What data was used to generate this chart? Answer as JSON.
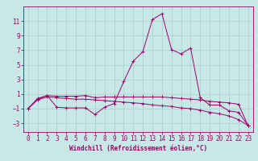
{
  "title": "",
  "xlabel": "Windchill (Refroidissement éolien,°C)",
  "ylabel": "",
  "bg_color": "#c8e8e8",
  "line_color": "#990066",
  "grid_color": "#aacccc",
  "xlim": [
    -0.5,
    23.5
  ],
  "ylim": [
    -4.2,
    13.0
  ],
  "xticks": [
    0,
    1,
    2,
    3,
    4,
    5,
    6,
    7,
    8,
    9,
    10,
    11,
    12,
    13,
    14,
    15,
    16,
    17,
    18,
    19,
    20,
    21,
    22,
    23
  ],
  "yticks": [
    -3,
    -1,
    1,
    3,
    5,
    7,
    9,
    11
  ],
  "line1": [
    [
      0,
      -1
    ],
    [
      1,
      0.4
    ],
    [
      2,
      0.8
    ],
    [
      3,
      -0.8
    ],
    [
      4,
      -0.9
    ],
    [
      5,
      -0.9
    ],
    [
      6,
      -0.9
    ],
    [
      7,
      -1.8
    ],
    [
      8,
      -0.8
    ],
    [
      9,
      -0.3
    ],
    [
      10,
      2.7
    ],
    [
      11,
      5.5
    ],
    [
      12,
      6.8
    ],
    [
      13,
      11.2
    ],
    [
      14,
      12.0
    ],
    [
      15,
      7.1
    ],
    [
      16,
      6.5
    ],
    [
      17,
      7.3
    ],
    [
      18,
      0.5
    ],
    [
      19,
      -0.5
    ],
    [
      20,
      -0.5
    ],
    [
      21,
      -1.3
    ],
    [
      22,
      -1.5
    ],
    [
      23,
      -3.3
    ]
  ],
  "line2": [
    [
      0,
      -1
    ],
    [
      1,
      0.3
    ],
    [
      2,
      0.8
    ],
    [
      3,
      0.7
    ],
    [
      4,
      0.7
    ],
    [
      5,
      0.7
    ],
    [
      6,
      0.8
    ],
    [
      7,
      0.5
    ],
    [
      8,
      0.6
    ],
    [
      9,
      0.6
    ],
    [
      10,
      0.6
    ],
    [
      11,
      0.6
    ],
    [
      12,
      0.6
    ],
    [
      13,
      0.6
    ],
    [
      14,
      0.6
    ],
    [
      15,
      0.5
    ],
    [
      16,
      0.4
    ],
    [
      17,
      0.3
    ],
    [
      18,
      0.2
    ],
    [
      19,
      0.0
    ],
    [
      20,
      -0.1
    ],
    [
      21,
      -0.2
    ],
    [
      22,
      -0.4
    ],
    [
      23,
      -3.3
    ]
  ],
  "line3": [
    [
      0,
      -1
    ],
    [
      1,
      0.2
    ],
    [
      2,
      0.6
    ],
    [
      3,
      0.5
    ],
    [
      4,
      0.4
    ],
    [
      5,
      0.3
    ],
    [
      6,
      0.3
    ],
    [
      7,
      0.2
    ],
    [
      8,
      0.1
    ],
    [
      9,
      0.0
    ],
    [
      10,
      -0.1
    ],
    [
      11,
      -0.2
    ],
    [
      12,
      -0.3
    ],
    [
      13,
      -0.5
    ],
    [
      14,
      -0.6
    ],
    [
      15,
      -0.7
    ],
    [
      16,
      -0.9
    ],
    [
      17,
      -1.0
    ],
    [
      18,
      -1.2
    ],
    [
      19,
      -1.5
    ],
    [
      20,
      -1.7
    ],
    [
      21,
      -2.0
    ],
    [
      22,
      -2.5
    ],
    [
      23,
      -3.3
    ]
  ],
  "xlabel_fontsize": 5.5,
  "tick_fontsize": 5.5,
  "lw": 0.7,
  "ms": 2.5,
  "mew": 0.7
}
